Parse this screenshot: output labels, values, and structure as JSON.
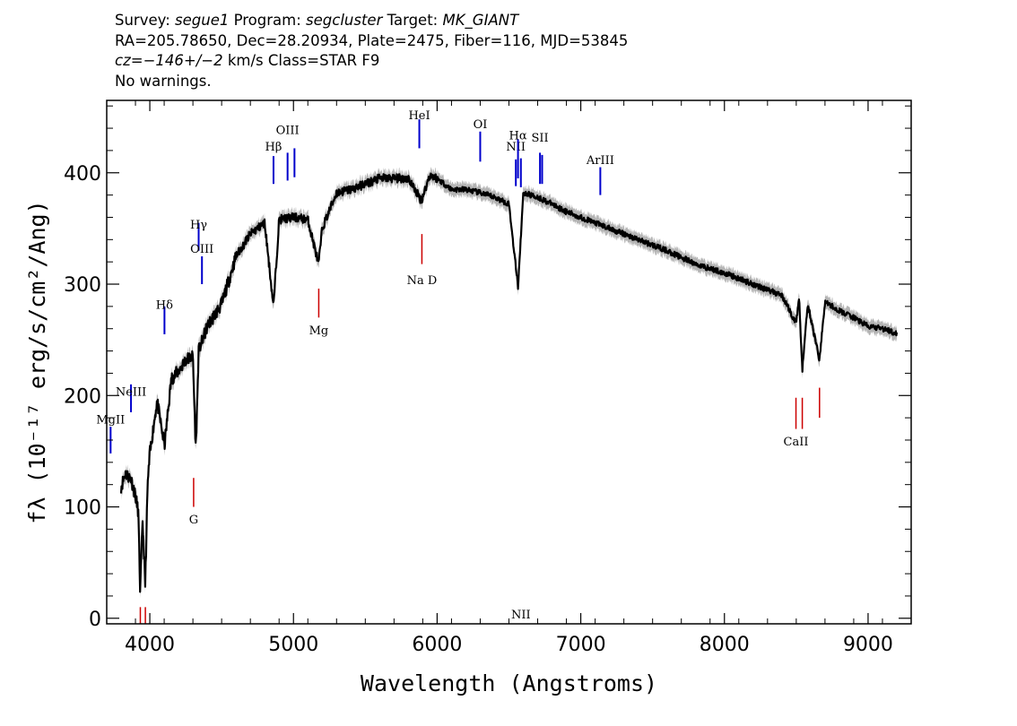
{
  "header": {
    "survey_label": "Survey:",
    "survey": "segue1",
    "program_label": "Program:",
    "program": "segcluster",
    "target_label": "Target:",
    "target": "MK_GIANT",
    "coords": "RA=205.78650, Dec=28.20934, Plate=2475, Fiber=116, MJD=53845",
    "cz_label": "cz=",
    "cz": "−146+/−2",
    "cz_unit_class": "km/s Class=STAR F9",
    "warnings": "No warnings."
  },
  "chart_data": {
    "type": "line",
    "xlabel": "Wavelength (Angstroms)",
    "ylabel": "fλ (10⁻¹⁷ erg/s/cm²/Ang)",
    "xlim": [
      3700,
      9300
    ],
    "ylim": [
      -5,
      465
    ],
    "x_ticks": [
      4000,
      5000,
      6000,
      7000,
      8000,
      9000
    ],
    "y_ticks": [
      0,
      100,
      200,
      300,
      400
    ],
    "grid": false,
    "colors": {
      "spectrum": "#000000",
      "error_band": "#b4b4b4",
      "emission": "#0000cc",
      "absorption": "#cc0000"
    },
    "spectrum": {
      "x": [
        3800,
        3830,
        3870,
        3900,
        3920,
        3933,
        3950,
        3968,
        3985,
        4000,
        4050,
        4102,
        4150,
        4200,
        4250,
        4300,
        4320,
        4340,
        4400,
        4500,
        4600,
        4700,
        4800,
        4861,
        4900,
        5000,
        5100,
        5175,
        5200,
        5300,
        5400,
        5500,
        5600,
        5700,
        5800,
        5890,
        5950,
        6000,
        6100,
        6200,
        6300,
        6400,
        6500,
        6563,
        6600,
        6700,
        6800,
        6900,
        7000,
        7200,
        7400,
        7600,
        7800,
        8000,
        8200,
        8400,
        8498,
        8520,
        8542,
        8580,
        8662,
        8700,
        8800,
        8900,
        9000,
        9100,
        9200
      ],
      "y": [
        118,
        130,
        125,
        110,
        95,
        22,
        88,
        30,
        120,
        148,
        195,
        155,
        215,
        222,
        232,
        235,
        150,
        240,
        262,
        282,
        325,
        345,
        355,
        280,
        358,
        360,
        358,
        318,
        350,
        382,
        385,
        390,
        395,
        395,
        395,
        375,
        398,
        395,
        385,
        385,
        382,
        378,
        372,
        298,
        382,
        378,
        372,
        365,
        360,
        350,
        340,
        330,
        318,
        310,
        300,
        290,
        265,
        288,
        222,
        282,
        232,
        284,
        276,
        270,
        262,
        260,
        256
      ]
    },
    "emission_lines": [
      {
        "label": "MgII",
        "x": 3727,
        "text_y": 175,
        "y0": 148,
        "y1": 172
      },
      {
        "label": "NeIII",
        "x": 3869,
        "text_y": 200,
        "y0": 185,
        "y1": 210
      },
      {
        "label": "Hδ",
        "x": 4102,
        "text_y": 278,
        "y0": 255,
        "y1": 280
      },
      {
        "label": "Hγ",
        "x": 4340,
        "text_y": 350,
        "y0": 330,
        "y1": 355
      },
      {
        "label": "OIII",
        "x": 4363,
        "text_y": 328,
        "y0": 300,
        "y1": 325
      },
      {
        "label": "Hβ",
        "x": 4861,
        "text_y": 420,
        "y0": 390,
        "y1": 415
      },
      {
        "label": "OIII",
        "x": 4959,
        "text_y": 435,
        "y0": 393,
        "y1": 418
      },
      {
        "label": "",
        "x": 5007,
        "text_y": 0,
        "y0": 396,
        "y1": 422
      },
      {
        "label": "HeI",
        "x": 5876,
        "text_y": 448,
        "y0": 422,
        "y1": 448
      },
      {
        "label": "OI",
        "x": 6300,
        "text_y": 440,
        "y0": 410,
        "y1": 437
      },
      {
        "label": "NII",
        "x": 6548,
        "text_y": 420,
        "y0": 388,
        "y1": 412
      },
      {
        "label": "Hα",
        "x": 6563,
        "text_y": 430,
        "y0": 395,
        "y1": 430
      },
      {
        "label": "NII",
        "x": 6583,
        "text_y": 0,
        "y0": 387,
        "y1": 413
      },
      {
        "label": "SII",
        "x": 6716,
        "text_y": 428,
        "y0": 390,
        "y1": 418
      },
      {
        "label": "",
        "x": 6731,
        "text_y": 0,
        "y0": 390,
        "y1": 416
      },
      {
        "label": "ArIII",
        "x": 7136,
        "text_y": 408,
        "y0": 380,
        "y1": 405
      }
    ],
    "absorption_lines": [
      {
        "label": "",
        "x": 3934,
        "text_y": 0,
        "y0": -5,
        "y1": 10
      },
      {
        "label": "",
        "x": 3969,
        "text_y": 0,
        "y0": -5,
        "y1": 10
      },
      {
        "label": "G",
        "x": 4305,
        "text_y": 85,
        "y0": 100,
        "y1": 126
      },
      {
        "label": "Mg",
        "x": 5176,
        "text_y": 255,
        "y0": 270,
        "y1": 296
      },
      {
        "label": "Na D",
        "x": 5894,
        "text_y": 300,
        "y0": 318,
        "y1": 345
      },
      {
        "label": "CaII",
        "x": 8498,
        "text_y": 155,
        "y0": 170,
        "y1": 198
      },
      {
        "label": "",
        "x": 8542,
        "text_y": 0,
        "y0": 170,
        "y1": 198
      },
      {
        "label": "",
        "x": 8662,
        "text_y": 0,
        "y0": 180,
        "y1": 207
      }
    ]
  }
}
